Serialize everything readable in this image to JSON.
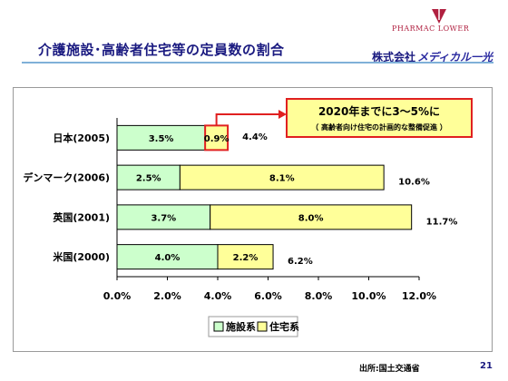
{
  "header": {
    "title": "介護施設･高齢者住宅等の定員数の割合",
    "brand_prefix": "株式会社",
    "brand_name": "メディカル一光",
    "logo_text": "PHARMAC    LOWER"
  },
  "footer": {
    "source": "出所:国土交通省",
    "page_number": "21"
  },
  "callout": {
    "line1": "2020年までに3～5%に",
    "line2": "（ 高齢者向け住宅の計画的な整備促進 ）"
  },
  "colors": {
    "facility": "#ccffcc",
    "housing": "#ffff99",
    "title": "#1a1a80",
    "callout_border": "#e02020",
    "callout_fill": "#ffff99"
  },
  "chart_data": {
    "type": "bar",
    "orientation": "horizontal",
    "stacked": true,
    "categories": [
      "日本(2005)",
      "デンマーク(2006)",
      "英国(2001)",
      "米国(2000)"
    ],
    "series": [
      {
        "name": "施設系",
        "values": [
          3.5,
          2.5,
          3.7,
          4.0
        ],
        "labels": [
          "3.5%",
          "2.5%",
          "3.7%",
          "4.0%"
        ]
      },
      {
        "name": "住宅系",
        "values": [
          0.9,
          8.1,
          8.0,
          2.2
        ],
        "labels": [
          "0.9%",
          "8.1%",
          "8.0%",
          "2.2%"
        ]
      }
    ],
    "totals": [
      "4.4%",
      "10.6%",
      "11.7%",
      "6.2%"
    ],
    "xlim": [
      0,
      12
    ],
    "xticks": [
      "0.0%",
      "2.0%",
      "4.0%",
      "6.0%",
      "8.0%",
      "10.0%",
      "12.0%"
    ],
    "legend_position": "bottom",
    "grid": false
  }
}
